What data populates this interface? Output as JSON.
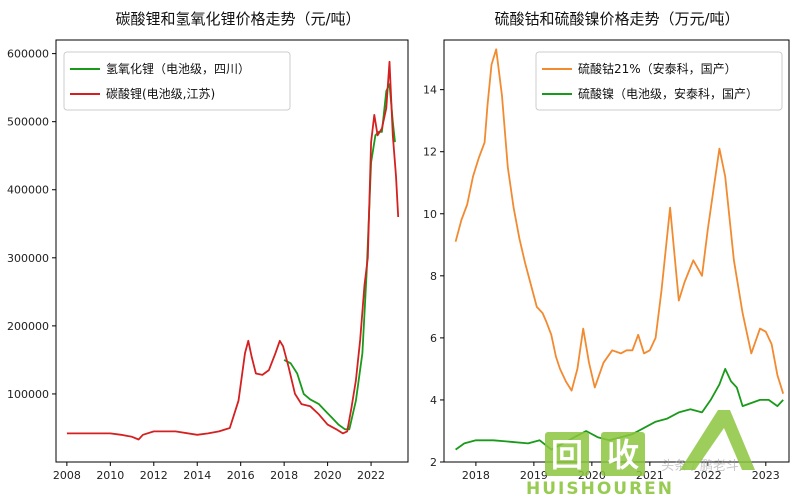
{
  "chart_data": [
    {
      "type": "line",
      "title": "碳酸锂和氢氧化锂价格走势（元/吨）",
      "xlabel": "",
      "ylabel": "",
      "xlim": [
        2007.5,
        2023.7
      ],
      "ylim": [
        0,
        620000
      ],
      "xticks": [
        2008,
        2010,
        2012,
        2014,
        2016,
        2018,
        2020,
        2022
      ],
      "xtick_labels": [
        "2008",
        "2010",
        "2012",
        "2014",
        "2016",
        "2018",
        "2020",
        "2022"
      ],
      "yticks": [
        100000,
        200000,
        300000,
        400000,
        500000,
        600000
      ],
      "ytick_labels": [
        "100000",
        "200000",
        "300000",
        "400000",
        "500000",
        "600000"
      ],
      "grid": false,
      "legend_position": "upper-left",
      "series": [
        {
          "name": "氢氧化锂（电池级，四川）",
          "color": "#1a9a1a",
          "x": [
            2018.0,
            2018.3,
            2018.6,
            2018.9,
            2019.2,
            2019.6,
            2019.9,
            2020.2,
            2020.5,
            2020.8,
            2021.0,
            2021.3,
            2021.6,
            2021.8,
            2022.0,
            2022.2,
            2022.35,
            2022.5,
            2022.7,
            2022.85,
            2023.0,
            2023.1
          ],
          "y": [
            150000,
            145000,
            130000,
            100000,
            92000,
            85000,
            75000,
            65000,
            55000,
            48000,
            48000,
            90000,
            160000,
            280000,
            440000,
            480000,
            485000,
            485000,
            545000,
            555000,
            500000,
            470000
          ]
        },
        {
          "name": "碳酸锂(电池级,江苏)",
          "color": "#d42020",
          "x": [
            2008.0,
            2009.0,
            2010.0,
            2010.5,
            2011.0,
            2011.3,
            2011.5,
            2012.0,
            2013.0,
            2014.0,
            2014.5,
            2015.0,
            2015.5,
            2015.9,
            2016.2,
            2016.35,
            2016.5,
            2016.7,
            2017.0,
            2017.3,
            2017.6,
            2017.8,
            2017.95,
            2018.2,
            2018.5,
            2018.8,
            2019.2,
            2019.6,
            2020.0,
            2020.4,
            2020.7,
            2020.9,
            2021.1,
            2021.3,
            2021.5,
            2021.7,
            2021.85,
            2022.0,
            2022.15,
            2022.3,
            2022.5,
            2022.7,
            2022.85,
            2023.0,
            2023.15,
            2023.25
          ],
          "y": [
            42000,
            42000,
            42000,
            40000,
            37000,
            33000,
            40000,
            45000,
            45000,
            40000,
            42000,
            45000,
            50000,
            90000,
            160000,
            178000,
            155000,
            130000,
            128000,
            135000,
            160000,
            178000,
            170000,
            140000,
            100000,
            85000,
            82000,
            70000,
            55000,
            48000,
            42000,
            45000,
            80000,
            120000,
            180000,
            260000,
            300000,
            470000,
            510000,
            480000,
            490000,
            520000,
            588000,
            480000,
            420000,
            360000
          ]
        }
      ]
    },
    {
      "type": "line",
      "title": "硫酸钴和硫酸镍价格走势（万元/吨）",
      "xlabel": "",
      "ylabel": "",
      "xlim": [
        2017.45,
        2023.4
      ],
      "ylim": [
        2,
        15.6
      ],
      "xticks": [
        2018,
        2019,
        2020,
        2021,
        2022,
        2023
      ],
      "xtick_labels": [
        "2018",
        "2019",
        "2020",
        "2021",
        "2022",
        "2023"
      ],
      "yticks": [
        2,
        4,
        6,
        8,
        10,
        12,
        14
      ],
      "ytick_labels": [
        "2",
        "4",
        "6",
        "8",
        "10",
        "12",
        "14"
      ],
      "grid": false,
      "legend_position": "upper-right",
      "series": [
        {
          "name": "硫酸钴21%（安泰科，国产）",
          "color": "#f28a30",
          "x": [
            2017.65,
            2017.75,
            2017.85,
            2017.95,
            2018.05,
            2018.15,
            2018.2,
            2018.27,
            2018.35,
            2018.45,
            2018.55,
            2018.65,
            2018.75,
            2018.85,
            2018.95,
            2019.05,
            2019.15,
            2019.22,
            2019.3,
            2019.38,
            2019.45,
            2019.55,
            2019.65,
            2019.75,
            2019.85,
            2019.95,
            2020.05,
            2020.2,
            2020.35,
            2020.5,
            2020.6,
            2020.7,
            2020.8,
            2020.9,
            2021.0,
            2021.1,
            2021.2,
            2021.35,
            2021.5,
            2021.6,
            2021.75,
            2021.9,
            2022.0,
            2022.1,
            2022.2,
            2022.3,
            2022.45,
            2022.6,
            2022.75,
            2022.9,
            2023.0,
            2023.1,
            2023.2,
            2023.3
          ],
          "y": [
            9.1,
            9.8,
            10.3,
            11.2,
            11.8,
            12.3,
            13.5,
            14.8,
            15.3,
            13.8,
            11.5,
            10.2,
            9.2,
            8.4,
            7.7,
            7.0,
            6.8,
            6.5,
            6.1,
            5.4,
            5.0,
            4.6,
            4.3,
            5.0,
            6.3,
            5.2,
            4.4,
            5.2,
            5.6,
            5.5,
            5.6,
            5.6,
            6.1,
            5.5,
            5.6,
            6.0,
            7.5,
            10.2,
            7.2,
            7.8,
            8.5,
            8.0,
            9.5,
            10.8,
            12.1,
            11.2,
            8.5,
            6.8,
            5.5,
            6.3,
            6.2,
            5.8,
            4.8,
            4.2
          ]
        },
        {
          "name": "硫酸镍（电池级，安泰科，国产）",
          "color": "#1a9a1a",
          "x": [
            2017.65,
            2017.8,
            2018.0,
            2018.3,
            2018.6,
            2018.9,
            2019.1,
            2019.3,
            2019.5,
            2019.7,
            2019.9,
            2020.1,
            2020.3,
            2020.5,
            2020.7,
            2020.9,
            2021.1,
            2021.3,
            2021.5,
            2021.7,
            2021.9,
            2022.05,
            2022.2,
            2022.3,
            2022.4,
            2022.5,
            2022.6,
            2022.75,
            2022.9,
            2023.05,
            2023.2,
            2023.3
          ],
          "y": [
            2.4,
            2.6,
            2.7,
            2.7,
            2.65,
            2.6,
            2.7,
            2.4,
            2.6,
            2.8,
            3.0,
            2.8,
            2.7,
            2.8,
            2.9,
            3.1,
            3.3,
            3.4,
            3.6,
            3.7,
            3.6,
            4.0,
            4.5,
            5.0,
            4.6,
            4.4,
            3.8,
            3.9,
            4.0,
            4.0,
            3.8,
            4.0
          ]
        }
      ]
    }
  ],
  "watermark": {
    "logo_chars": [
      "回",
      "收"
    ],
    "brand": "HUISHOUREN",
    "faint_text": "头条 / 鹏老斗",
    "color": "#8cc63f"
  }
}
